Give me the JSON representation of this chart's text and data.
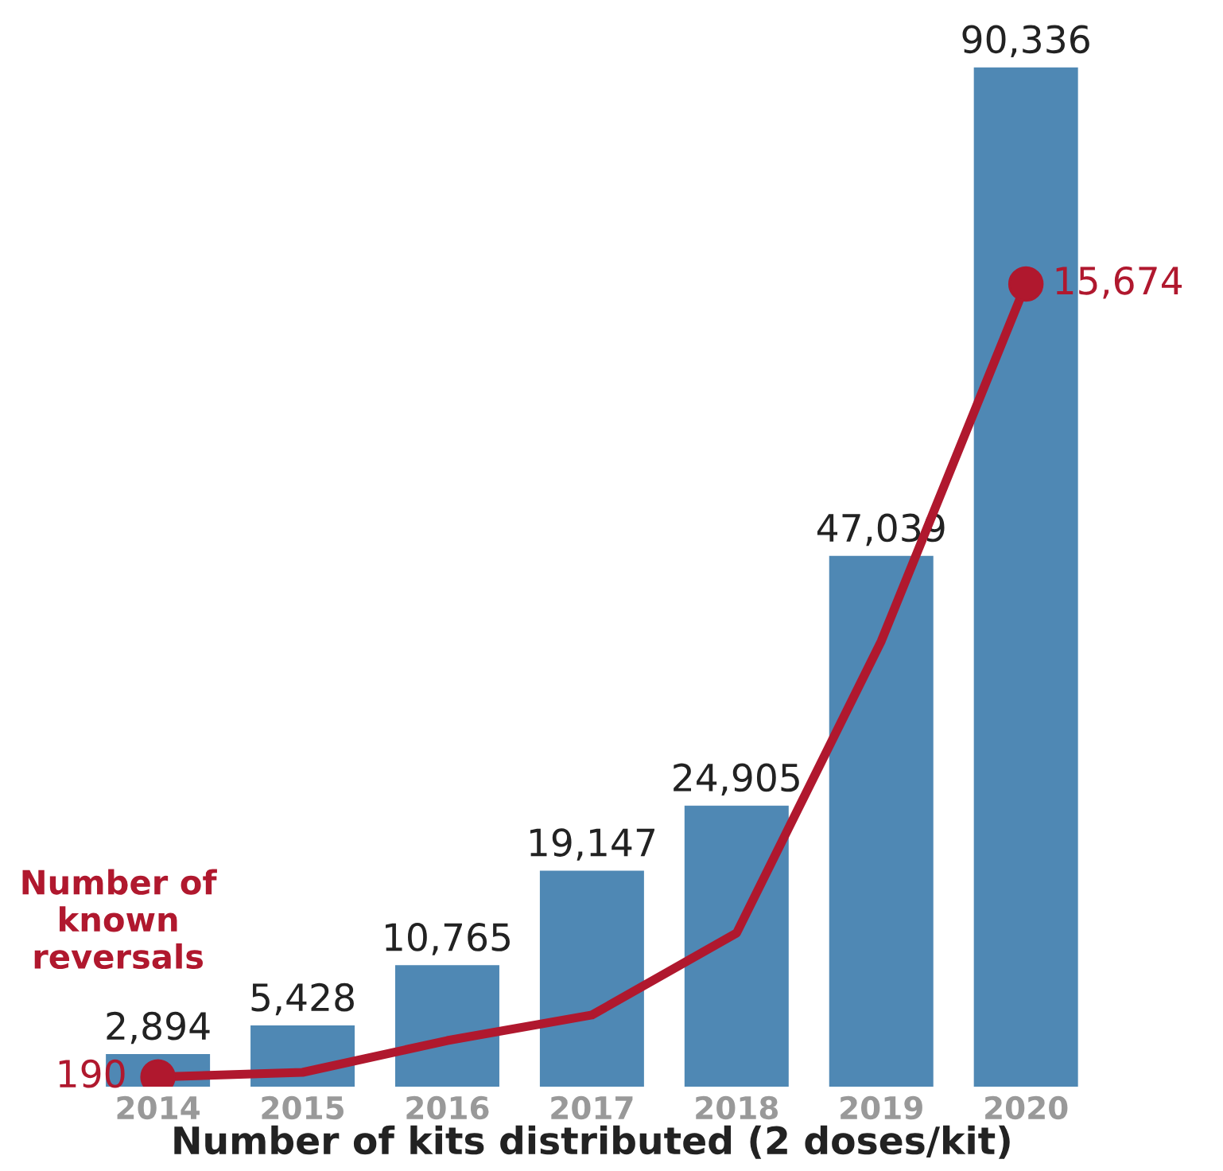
{
  "chart_data": {
    "type": "bar",
    "xlabel": "Number of kits distributed (2 doses/kit)",
    "categories": [
      "2014",
      "2015",
      "2016",
      "2017",
      "2018",
      "2019",
      "2020"
    ],
    "tick_labels": "x",
    "grid": false,
    "legend": false,
    "series": [
      {
        "color": "#4f88b4",
        "values": [
          2894,
          5428,
          10765,
          19147,
          24905,
          47039,
          90336
        ],
        "value_labels": [
          "2,894",
          "5,428",
          "10,765",
          "19,147",
          "24,905",
          "47,039",
          "90,336"
        ]
      },
      {
        "type": "line",
        "axis": "y2",
        "name": "Number of known reversals",
        "color": "#b0182e",
        "values": [
          190,
          280,
          900,
          1400,
          3000,
          8700,
          15674
        ],
        "value_labels": [
          "190",
          null,
          null,
          null,
          null,
          null,
          "15,674"
        ]
      }
    ]
  }
}
